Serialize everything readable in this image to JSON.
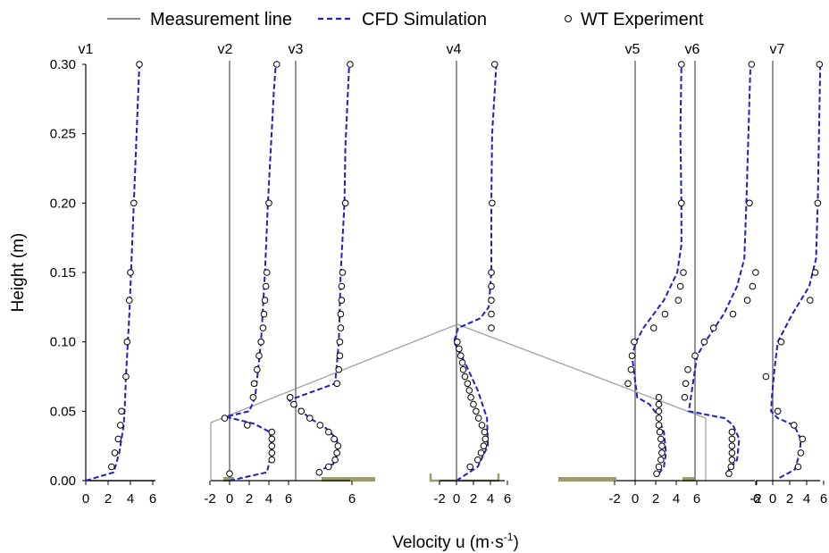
{
  "chart_data": {
    "type": "line",
    "xlabel": "Velocity u (m·s",
    "xlabel_sup": "-1",
    "xlabel_close": ")",
    "ylabel": "Height (m)",
    "ylim": [
      0,
      0.3
    ],
    "yticks": [
      "0.00",
      "0.05",
      "0.10",
      "0.15",
      "0.20",
      "0.25",
      "0.30"
    ],
    "legend": {
      "placement": "top",
      "items": [
        {
          "label": "Measurement line",
          "style": "solid",
          "color": "#888888"
        },
        {
          "label": "CFD Simulation",
          "style": "dashed",
          "color": "#1f1fc8"
        },
        {
          "label": "WT Experiment",
          "style": "marker",
          "color": "#000000"
        }
      ]
    },
    "colors": {
      "cfd": "#1f1fc8",
      "measurement": "#888888",
      "building": "#9b9b6e",
      "roof": "#a0a0a0"
    },
    "profiles": [
      {
        "name": "v1",
        "xticks": [
          "0",
          "2",
          "4",
          "6"
        ],
        "cfd": [
          [
            0,
            0
          ],
          [
            2.5,
            0.006
          ],
          [
            3.0,
            0.02
          ],
          [
            3.4,
            0.04
          ],
          [
            3.5,
            0.055
          ],
          [
            3.6,
            0.075
          ],
          [
            3.9,
            0.12
          ],
          [
            4.3,
            0.2
          ],
          [
            4.8,
            0.3
          ]
        ],
        "exp": [
          [
            2.3,
            0.01
          ],
          [
            2.6,
            0.02
          ],
          [
            2.9,
            0.03
          ],
          [
            3.1,
            0.04
          ],
          [
            3.2,
            0.05
          ],
          [
            3.6,
            0.075
          ],
          [
            3.7,
            0.1
          ],
          [
            3.9,
            0.13
          ],
          [
            4.0,
            0.15
          ],
          [
            4.3,
            0.2
          ],
          [
            4.8,
            0.3
          ]
        ]
      },
      {
        "name": "v2",
        "xticks": [
          "-2",
          "0",
          "2",
          "4",
          "6"
        ],
        "cfd": [
          [
            0,
            0
          ],
          [
            3.8,
            0.006
          ],
          [
            4.1,
            0.015
          ],
          [
            4.3,
            0.025
          ],
          [
            4.1,
            0.035
          ],
          [
            2.5,
            0.041
          ],
          [
            -0.4,
            0.046
          ],
          [
            2.0,
            0.05
          ],
          [
            2.6,
            0.06
          ],
          [
            3.2,
            0.1
          ],
          [
            3.6,
            0.15
          ],
          [
            3.9,
            0.2
          ],
          [
            4.5,
            0.28
          ],
          [
            4.7,
            0.3
          ]
        ],
        "exp": [
          [
            0.0,
            0.005
          ],
          [
            4.3,
            0.015
          ],
          [
            4.3,
            0.02
          ],
          [
            4.3,
            0.025
          ],
          [
            4.3,
            0.03
          ],
          [
            4.3,
            0.035
          ],
          [
            1.8,
            0.04
          ],
          [
            -0.5,
            0.045
          ],
          [
            2.4,
            0.06
          ],
          [
            2.5,
            0.07
          ],
          [
            2.8,
            0.08
          ],
          [
            3.0,
            0.09
          ],
          [
            3.2,
            0.1
          ],
          [
            3.4,
            0.11
          ],
          [
            3.5,
            0.12
          ],
          [
            3.6,
            0.13
          ],
          [
            3.7,
            0.14
          ],
          [
            3.8,
            0.15
          ],
          [
            4.0,
            0.2
          ],
          [
            4.8,
            0.3
          ]
        ]
      },
      {
        "name": "v3",
        "xticks": [
          "6"
        ],
        "cfd": [
          [
            2.2,
            0.006
          ],
          [
            4.0,
            0.012
          ],
          [
            4.5,
            0.02
          ],
          [
            4.4,
            0.03
          ],
          [
            3.2,
            0.038
          ],
          [
            1.5,
            0.045
          ],
          [
            -0.7,
            0.058
          ],
          [
            4.2,
            0.07
          ],
          [
            4.6,
            0.1
          ],
          [
            4.8,
            0.15
          ],
          [
            5.2,
            0.2
          ],
          [
            5.3,
            0.24
          ],
          [
            5.7,
            0.3
          ]
        ],
        "exp": [
          [
            2.5,
            0.006
          ],
          [
            3.5,
            0.01
          ],
          [
            4.2,
            0.015
          ],
          [
            4.4,
            0.02
          ],
          [
            4.5,
            0.025
          ],
          [
            4.1,
            0.03
          ],
          [
            3.5,
            0.035
          ],
          [
            2.6,
            0.04
          ],
          [
            1.5,
            0.045
          ],
          [
            0.6,
            0.05
          ],
          [
            -0.2,
            0.055
          ],
          [
            -0.6,
            0.06
          ],
          [
            4.4,
            0.07
          ],
          [
            4.6,
            0.08
          ],
          [
            4.7,
            0.09
          ],
          [
            4.7,
            0.1
          ],
          [
            4.8,
            0.11
          ],
          [
            4.8,
            0.12
          ],
          [
            4.9,
            0.13
          ],
          [
            4.9,
            0.14
          ],
          [
            5.0,
            0.15
          ],
          [
            5.3,
            0.2
          ],
          [
            5.8,
            0.3
          ]
        ]
      },
      {
        "name": "v4",
        "xticks": [
          "-2",
          "0",
          "2",
          "4",
          "6"
        ],
        "cfd": [
          [
            0,
            0
          ],
          [
            2.5,
            0.01
          ],
          [
            3.7,
            0.025
          ],
          [
            3.6,
            0.045
          ],
          [
            2.5,
            0.065
          ],
          [
            1.0,
            0.085
          ],
          [
            -0.3,
            0.1
          ],
          [
            0.2,
            0.11
          ],
          [
            2.8,
            0.117
          ],
          [
            3.8,
            0.125
          ],
          [
            4.1,
            0.15
          ],
          [
            4.1,
            0.2
          ],
          [
            4.2,
            0.25
          ],
          [
            4.7,
            0.3
          ]
        ],
        "exp": [
          [
            1.6,
            0.01
          ],
          [
            2.5,
            0.015
          ],
          [
            2.9,
            0.02
          ],
          [
            3.2,
            0.025
          ],
          [
            3.4,
            0.03
          ],
          [
            3.3,
            0.035
          ],
          [
            3.0,
            0.04
          ],
          [
            2.6,
            0.045
          ],
          [
            2.3,
            0.05
          ],
          [
            2.0,
            0.055
          ],
          [
            1.7,
            0.06
          ],
          [
            1.5,
            0.065
          ],
          [
            1.3,
            0.07
          ],
          [
            1.0,
            0.075
          ],
          [
            0.8,
            0.08
          ],
          [
            0.7,
            0.085
          ],
          [
            0.5,
            0.09
          ],
          [
            0.3,
            0.095
          ],
          [
            0.1,
            0.1
          ],
          [
            4.1,
            0.11
          ],
          [
            4.1,
            0.12
          ],
          [
            4.1,
            0.13
          ],
          [
            4.1,
            0.14
          ],
          [
            4.1,
            0.15
          ],
          [
            4.2,
            0.2
          ],
          [
            4.5,
            0.3
          ]
        ]
      },
      {
        "name": "v5",
        "xticks": [
          "-2",
          "0",
          "2",
          "4",
          "6"
        ],
        "cfd": [
          [
            2.3,
            0.005
          ],
          [
            2.8,
            0.01
          ],
          [
            3.0,
            0.02
          ],
          [
            2.8,
            0.035
          ],
          [
            2.1,
            0.048
          ],
          [
            1.4,
            0.055
          ],
          [
            0.2,
            0.06
          ],
          [
            -0.3,
            0.09
          ],
          [
            0.1,
            0.1
          ],
          [
            0.8,
            0.11
          ],
          [
            2.8,
            0.13
          ],
          [
            4.1,
            0.15
          ],
          [
            4.5,
            0.17
          ],
          [
            4.5,
            0.2
          ],
          [
            4.4,
            0.25
          ],
          [
            4.5,
            0.3
          ]
        ],
        "exp": [
          [
            2.1,
            0.005
          ],
          [
            2.3,
            0.01
          ],
          [
            2.5,
            0.015
          ],
          [
            2.6,
            0.02
          ],
          [
            2.6,
            0.025
          ],
          [
            2.5,
            0.03
          ],
          [
            2.4,
            0.035
          ],
          [
            2.3,
            0.04
          ],
          [
            2.3,
            0.045
          ],
          [
            2.3,
            0.05
          ],
          [
            2.3,
            0.055
          ],
          [
            2.3,
            0.06
          ],
          [
            -0.7,
            0.07
          ],
          [
            -0.4,
            0.08
          ],
          [
            -0.3,
            0.09
          ],
          [
            -0.1,
            0.1
          ],
          [
            1.8,
            0.11
          ],
          [
            2.9,
            0.12
          ],
          [
            4.2,
            0.13
          ],
          [
            4.4,
            0.14
          ],
          [
            4.7,
            0.15
          ],
          [
            4.5,
            0.2
          ],
          [
            4.5,
            0.3
          ]
        ]
      },
      {
        "name": "v6",
        "xticks": [
          "6"
        ],
        "cfd": [
          [
            3.0,
            0.005
          ],
          [
            4.1,
            0.015
          ],
          [
            4.3,
            0.03
          ],
          [
            3.7,
            0.04
          ],
          [
            2.9,
            0.045
          ],
          [
            -0.6,
            0.05
          ],
          [
            -0.2,
            0.07
          ],
          [
            0.2,
            0.09
          ],
          [
            1.0,
            0.1
          ],
          [
            2.8,
            0.12
          ],
          [
            4.1,
            0.14
          ],
          [
            4.8,
            0.16
          ],
          [
            5.0,
            0.2
          ],
          [
            5.4,
            0.3
          ]
        ],
        "exp": [
          [
            3.3,
            0.005
          ],
          [
            3.5,
            0.01
          ],
          [
            3.6,
            0.015
          ],
          [
            3.6,
            0.02
          ],
          [
            3.6,
            0.025
          ],
          [
            3.6,
            0.03
          ],
          [
            3.6,
            0.035
          ],
          [
            -1.0,
            0.06
          ],
          [
            -0.9,
            0.07
          ],
          [
            -0.7,
            0.08
          ],
          [
            0.0,
            0.09
          ],
          [
            0.9,
            0.1
          ],
          [
            1.8,
            0.11
          ],
          [
            3.7,
            0.12
          ],
          [
            5.1,
            0.13
          ],
          [
            5.6,
            0.14
          ],
          [
            5.9,
            0.15
          ],
          [
            5.3,
            0.2
          ],
          [
            5.5,
            0.3
          ]
        ]
      },
      {
        "name": "v7",
        "xticks": [
          "-2",
          "0",
          "2",
          "4",
          "6"
        ],
        "cfd": [
          [
            0.8,
            0.002
          ],
          [
            2.6,
            0.008
          ],
          [
            3.2,
            0.02
          ],
          [
            3.3,
            0.03
          ],
          [
            2.5,
            0.04
          ],
          [
            0.6,
            0.045
          ],
          [
            -0.2,
            0.05
          ],
          [
            -0.1,
            0.06
          ],
          [
            0.2,
            0.08
          ],
          [
            0.6,
            0.1
          ],
          [
            2.3,
            0.12
          ],
          [
            4.3,
            0.14
          ],
          [
            5.1,
            0.16
          ],
          [
            5.3,
            0.2
          ],
          [
            5.6,
            0.3
          ]
        ],
        "exp": [
          [
            3.0,
            0.01
          ],
          [
            3.3,
            0.02
          ],
          [
            3.5,
            0.03
          ],
          [
            2.5,
            0.04
          ],
          [
            0.6,
            0.05
          ],
          [
            -0.8,
            0.075
          ],
          [
            1.0,
            0.1
          ],
          [
            4.4,
            0.13
          ],
          [
            5.0,
            0.15
          ],
          [
            5.3,
            0.2
          ],
          [
            5.5,
            0.3
          ]
        ]
      }
    ]
  }
}
